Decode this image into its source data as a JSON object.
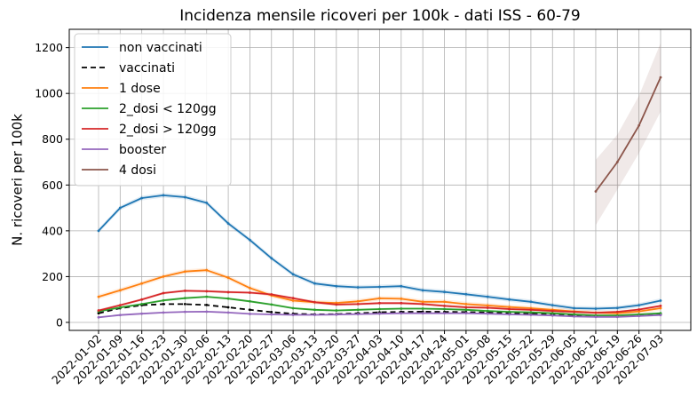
{
  "chart_data": {
    "type": "line",
    "title": "Incidenza mensile ricoveri per 100k - dati ISS - 60-79",
    "xlabel": "",
    "ylabel": "N. ricoveri per 100k",
    "ylim": [
      -35,
      1280
    ],
    "yticks": [
      0,
      200,
      400,
      600,
      800,
      1000,
      1200
    ],
    "grid": true,
    "legend_position": "top-left",
    "categories": [
      "2022-01-02",
      "2022-01-09",
      "2022-01-16",
      "2022-01-23",
      "2022-01-30",
      "2022-02-06",
      "2022-02-13",
      "2022-02-20",
      "2022-02-27",
      "2022-03-06",
      "2022-03-13",
      "2022-03-20",
      "2022-03-27",
      "2022-04-03",
      "2022-04-10",
      "2022-04-17",
      "2022-04-24",
      "2022-05-01",
      "2022-05-08",
      "2022-05-15",
      "2022-05-22",
      "2022-05-29",
      "2022-06-05",
      "2022-06-12",
      "2022-06-19",
      "2022-06-26",
      "2022-07-03"
    ],
    "series": [
      {
        "name": "non vaccinati",
        "color": "#1f77b4",
        "dash": "",
        "values": [
          400,
          500,
          543,
          555,
          547,
          522,
          432,
          360,
          280,
          210,
          170,
          158,
          153,
          155,
          158,
          140,
          133,
          123,
          112,
          100,
          90,
          75,
          62,
          60,
          63,
          75,
          95
        ],
        "band": 10
      },
      {
        "name": "vaccinati",
        "color": "#000000",
        "dash": "6,4",
        "values": [
          40,
          62,
          75,
          80,
          80,
          76,
          66,
          55,
          45,
          38,
          35,
          36,
          40,
          44,
          46,
          47,
          46,
          45,
          43,
          40,
          38,
          34,
          30,
          28,
          28,
          30,
          35
        ]
      },
      {
        "name": "1 dose",
        "color": "#ff7f0e",
        "dash": "",
        "values": [
          112,
          140,
          170,
          200,
          222,
          228,
          195,
          150,
          118,
          95,
          88,
          85,
          92,
          105,
          103,
          90,
          90,
          80,
          74,
          67,
          62,
          55,
          48,
          42,
          40,
          48,
          62
        ],
        "band": 10
      },
      {
        "name": "2_dosi < 120gg",
        "color": "#2ca02c",
        "dash": "",
        "values": [
          48,
          65,
          80,
          96,
          106,
          112,
          104,
          92,
          78,
          62,
          55,
          52,
          55,
          58,
          60,
          60,
          58,
          55,
          50,
          46,
          44,
          40,
          35,
          30,
          30,
          35,
          40
        ],
        "band": 5
      },
      {
        "name": "2_dosi > 120gg",
        "color": "#d62728",
        "dash": "",
        "values": [
          52,
          75,
          100,
          128,
          138,
          136,
          132,
          130,
          122,
          106,
          88,
          78,
          80,
          84,
          84,
          80,
          72,
          66,
          64,
          58,
          55,
          50,
          46,
          42,
          46,
          56,
          72
        ],
        "band": 6
      },
      {
        "name": "booster",
        "color": "#9467bd",
        "dash": "",
        "values": [
          22,
          32,
          38,
          43,
          46,
          47,
          43,
          37,
          35,
          33,
          33,
          34,
          36,
          38,
          40,
          40,
          40,
          40,
          38,
          35,
          33,
          30,
          26,
          24,
          24,
          28,
          32
        ],
        "band": 3
      },
      {
        "name": "4 dosi",
        "color": "#8c564b",
        "dash": "",
        "values": [
          null,
          null,
          null,
          null,
          null,
          null,
          null,
          null,
          null,
          null,
          null,
          null,
          null,
          null,
          null,
          null,
          null,
          null,
          null,
          null,
          null,
          null,
          null,
          572,
          700,
          860,
          1070
        ],
        "lower": [
          null,
          null,
          null,
          null,
          null,
          null,
          null,
          null,
          null,
          null,
          null,
          null,
          null,
          null,
          null,
          null,
          null,
          null,
          null,
          null,
          null,
          null,
          null,
          425,
          580,
          740,
          920
        ],
        "upper": [
          null,
          null,
          null,
          null,
          null,
          null,
          null,
          null,
          null,
          null,
          null,
          null,
          null,
          null,
          null,
          null,
          null,
          null,
          null,
          null,
          null,
          null,
          null,
          710,
          820,
          990,
          1220
        ]
      }
    ]
  }
}
